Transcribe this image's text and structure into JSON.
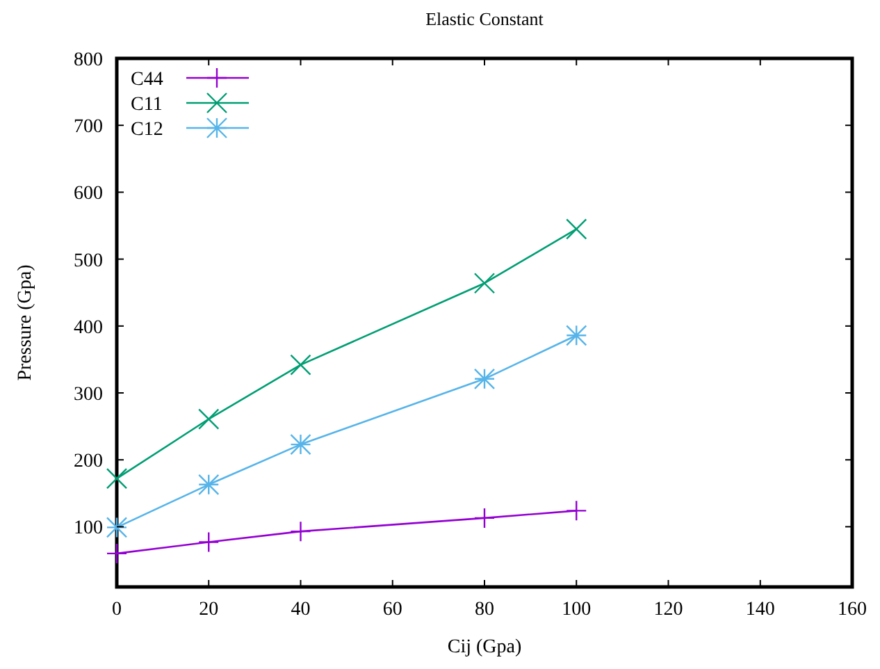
{
  "chart_data": {
    "type": "line",
    "title": "Elastic Constant",
    "xlabel": "Cij (Gpa)",
    "ylabel": "Pressure (Gpa)",
    "x": [
      0,
      20,
      40,
      80,
      100
    ],
    "series": [
      {
        "name": "C44",
        "color": "#9400d3",
        "values": [
          60,
          77,
          93,
          113,
          124
        ]
      },
      {
        "name": "C11",
        "color": "#009e73",
        "values": [
          172,
          261,
          342,
          464,
          545
        ]
      },
      {
        "name": "C12",
        "color": "#56b4e9",
        "values": [
          99,
          163,
          223,
          321,
          386
        ]
      }
    ],
    "xlim": [
      0,
      160
    ],
    "xticks": [
      0,
      20,
      40,
      60,
      80,
      100,
      120,
      140,
      160
    ],
    "marker": "cross",
    "ylim": [
      10,
      800
    ],
    "yticks": [
      100,
      200,
      300,
      400,
      500,
      600,
      700,
      800
    ],
    "legend": "top left",
    "grid": false,
    "line_style": "solid"
  }
}
